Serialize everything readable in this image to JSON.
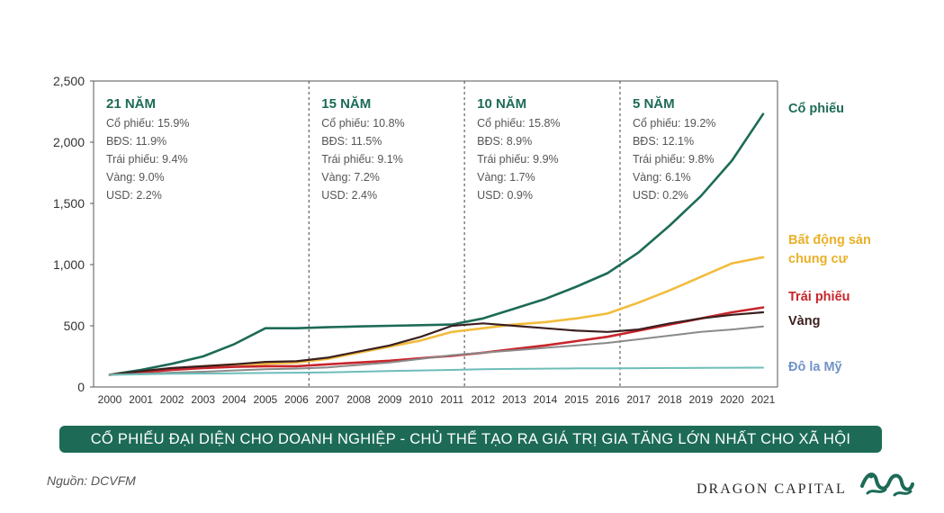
{
  "chart_data": {
    "type": "line",
    "x": [
      "2000",
      "2001",
      "2002",
      "2003",
      "2004",
      "2005",
      "2006",
      "2007",
      "2008",
      "2009",
      "2010",
      "2011",
      "2012",
      "2013",
      "2014",
      "2015",
      "2016",
      "2017",
      "2018",
      "2019",
      "2020",
      "2021"
    ],
    "ylim": [
      0,
      2500
    ],
    "yticks": [
      "0",
      "500",
      "1,000",
      "1,500",
      "2,000",
      "2,500"
    ],
    "grid": "vertical dashed period separators",
    "series": [
      {
        "name": "Cổ phiếu",
        "color": "#1d6b57",
        "values": [
          100,
          140,
          190,
          250,
          350,
          480,
          480,
          488,
          495,
          500,
          505,
          510,
          560,
          640,
          720,
          820,
          930,
          1100,
          1320,
          1560,
          1850,
          2230
        ]
      },
      {
        "name": "Bất động sản chung cư",
        "color": "#f2bc3c",
        "values": [
          100,
          125,
          150,
          170,
          185,
          190,
          200,
          230,
          280,
          330,
          380,
          450,
          480,
          510,
          530,
          560,
          600,
          690,
          790,
          900,
          1010,
          1060
        ]
      },
      {
        "name": "Trái phiếu",
        "color": "#c8252c",
        "values": [
          100,
          120,
          140,
          155,
          165,
          170,
          170,
          185,
          200,
          215,
          235,
          255,
          280,
          310,
          340,
          375,
          410,
          460,
          510,
          560,
          610,
          650
        ]
      },
      {
        "name": "Vàng",
        "color": "#3a1f1f",
        "values": [
          100,
          130,
          155,
          170,
          185,
          205,
          210,
          240,
          290,
          340,
          410,
          500,
          520,
          500,
          480,
          460,
          450,
          470,
          520,
          560,
          590,
          610
        ]
      },
      {
        "name": "USD",
        "color": "#8a8a8a",
        "values": [
          100,
          108,
          118,
          125,
          135,
          145,
          150,
          160,
          180,
          200,
          230,
          260,
          280,
          300,
          320,
          340,
          360,
          390,
          420,
          450,
          470,
          495
        ]
      },
      {
        "name": "Đô la Mỹ",
        "color": "#6dbdb8",
        "values": [
          100,
          104,
          108,
          110,
          112,
          115,
          117,
          120,
          125,
          130,
          135,
          140,
          145,
          148,
          150,
          152,
          153,
          154,
          155,
          156,
          157,
          158
        ]
      }
    ],
    "labels": [
      {
        "series": 0,
        "lines": [
          "Cổ phiếu"
        ],
        "color": "#1d6b57"
      },
      {
        "series": 1,
        "lines": [
          "Bất động sản",
          "chung cư"
        ],
        "color": "#eab028"
      },
      {
        "series": 2,
        "lines": [
          "Trái phiếu"
        ],
        "color": "#c8252c"
      },
      {
        "series": 3,
        "lines": [
          "Vàng"
        ],
        "color": "#3a1f1f"
      },
      {
        "series": 5,
        "lines": [
          "Đô la Mỹ"
        ],
        "color": "#6f93c8"
      }
    ],
    "periods": [
      {
        "title": "21 NĂM",
        "start": "2000",
        "lines": [
          "Cổ phiếu: 15.9%",
          "BĐS: 11.9%",
          "Trái phiếu: 9.4%",
          "Vàng: 9.0%",
          "USD: 2.2%"
        ]
      },
      {
        "title": "15 NĂM",
        "start": "2006.4",
        "lines": [
          "Cổ phiếu: 10.8%",
          "BĐS: 11.5%",
          "Trái phiếu: 9.1%",
          "Vàng: 7.2%",
          "USD: 2.4%"
        ]
      },
      {
        "title": "10 NĂM",
        "start": "2011.4",
        "lines": [
          "Cổ phiếu: 15.8%",
          "BĐS: 8.9%",
          "Trái phiếu: 9.9%",
          "Vàng: 1.7%",
          "USD: 0.9%"
        ]
      },
      {
        "title": "5 NĂM",
        "start": "2016.4",
        "lines": [
          "Cổ phiếu: 19.2%",
          "BĐS: 12.1%",
          "Trái phiếu: 9.8%",
          "Vàng: 6.1%",
          "USD: 0.2%"
        ]
      }
    ]
  },
  "banner": "CỔ PHIẾU ĐẠI DIỆN CHO DOANH NGHIỆP - CHỦ THỂ TẠO RA GIÁ TRỊ GIA TĂNG LỚN NHẤT CHO XÃ HỘI",
  "source": "Nguồn: DCVFM",
  "brand": "DRAGON CAPITAL",
  "logo_icon": "dragon-logo-icon",
  "colors": {
    "accent": "#1d6b57"
  }
}
